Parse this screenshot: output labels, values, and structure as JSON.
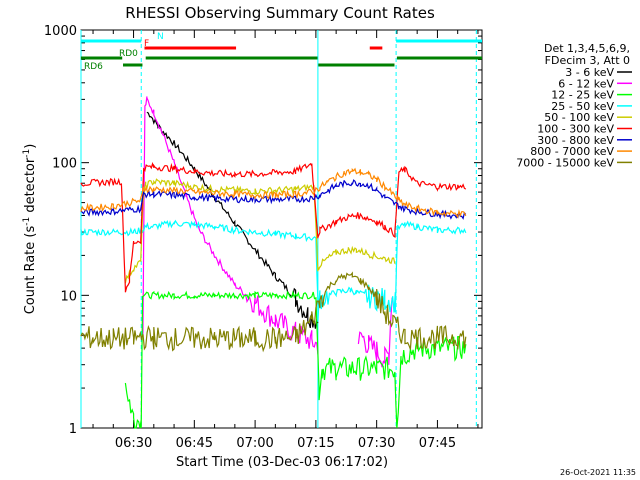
{
  "chart_data": {
    "type": "line",
    "title": "RHESSI Observing Summary Count Rates",
    "xlabel": "Start Time (03-Dec-03 06:17:02)",
    "ylabel_prefix": "Count Rate (s",
    "ylabel_sup": "-1",
    "ylabel_suffix": " detector",
    "ylabel_sup2": "-1",
    "ylabel_close": ")",
    "x_start_minutes": 17.03,
    "xlim_minutes": [
      17.03,
      116.0
    ],
    "ylim": [
      1,
      1000
    ],
    "y_scale": "log",
    "x_ticks": [
      {
        "label": "06:30",
        "minutes": 30
      },
      {
        "label": "06:45",
        "minutes": 45
      },
      {
        "label": "07:00",
        "minutes": 60
      },
      {
        "label": "07:15",
        "minutes": 75
      },
      {
        "label": "07:30",
        "minutes": 90
      },
      {
        "label": "07:45",
        "minutes": 105
      }
    ],
    "y_ticks": [
      {
        "label": "1",
        "value": 1
      },
      {
        "label": "10",
        "value": 10
      },
      {
        "label": "100",
        "value": 100
      },
      {
        "label": "1000",
        "value": 1000
      }
    ],
    "legend": {
      "position": "right",
      "header": [
        "Det 1,3,4,5,6,9,",
        "FDecim 3, Att 0"
      ]
    },
    "series": [
      {
        "name": "3 - 6 keV",
        "color": "#000000",
        "x": [
          17,
          32.5,
          33.3,
          34,
          36,
          40,
          45,
          50,
          55,
          60,
          65,
          70,
          73,
          75.5,
          76.5,
          80,
          85,
          87
        ],
        "y": [
          null,
          null,
          240,
          230,
          190,
          140,
          90,
          55,
          35,
          22,
          14,
          9.5,
          7.2,
          6.4,
          null,
          null,
          null,
          null
        ]
      },
      {
        "name": "6 - 12 keV",
        "color": "#ff00ff",
        "x": [
          32.3,
          32.8,
          33.3,
          35,
          37,
          40,
          43,
          46,
          50,
          55,
          60,
          65,
          70,
          74,
          75.5,
          76.5,
          84,
          85.5,
          86.5,
          88,
          90,
          92,
          93,
          93.8
        ],
        "y": [
          6,
          260,
          300,
          240,
          170,
          100,
          55,
          32,
          20,
          12,
          8.8,
          6.5,
          5.2,
          4.5,
          4.2,
          null,
          null,
          4.5,
          4.8,
          4.2,
          3.8,
          3.3,
          3.6,
          10
        ]
      },
      {
        "name": "12 - 25 keV",
        "color": "#00ff00",
        "x": [
          17,
          27.5,
          28,
          29,
          30,
          31.9,
          32.2,
          35,
          40,
          45,
          50,
          55,
          60,
          65,
          70,
          75,
          75.8,
          76.5,
          80,
          85,
          90,
          94.5,
          95,
          96,
          100,
          110,
          112
        ],
        "y": [
          null,
          null,
          2.2,
          1.6,
          1.2,
          1.1,
          10,
          10,
          10,
          10,
          10,
          10,
          10,
          10,
          10,
          10,
          1.9,
          2.8,
          2.8,
          2.8,
          2.8,
          2.8,
          1.0,
          3.5,
          4.0,
          4.0,
          4.0
        ]
      },
      {
        "name": "25 - 50 keV",
        "color": "#00ffff",
        "x": [
          17,
          27,
          30,
          32.2,
          32.8,
          35,
          40,
          45,
          50,
          55,
          60,
          65,
          70,
          75,
          75.5,
          76,
          80,
          83.5,
          85,
          88,
          90,
          92,
          94.6,
          95.2,
          97,
          100,
          105,
          110,
          112
        ],
        "y": [
          30,
          30,
          30,
          31,
          33,
          33,
          35,
          34,
          33,
          31,
          30,
          29,
          28,
          27,
          7.5,
          9.5,
          10.5,
          11,
          10.5,
          9.8,
          9.5,
          9.3,
          9.0,
          32,
          34,
          33,
          31,
          31,
          31
        ]
      },
      {
        "name": "50 - 100 keV",
        "color": "#cccc00",
        "x": [
          17,
          27.3,
          28,
          30,
          31.8,
          32.3,
          33,
          35,
          40,
          45,
          50,
          55,
          60,
          65,
          70,
          74.5,
          75.5,
          76,
          78,
          80,
          83,
          85,
          87,
          89,
          92,
          94.5,
          95.5,
          97,
          100,
          105,
          110,
          112
        ],
        "y": [
          null,
          null,
          13,
          16,
          18,
          50,
          68,
          72,
          70,
          66,
          63,
          62,
          61,
          62,
          63,
          66,
          16,
          17,
          19,
          21,
          22,
          22,
          21,
          20,
          19,
          18,
          null,
          null,
          null,
          null,
          null,
          null
        ]
      },
      {
        "name": "100 - 300 keV",
        "color": "#ff0000",
        "x": [
          17,
          27,
          28,
          29,
          30,
          31.8,
          32.5,
          35,
          40,
          45,
          50,
          55,
          60,
          65,
          70,
          74,
          75.5,
          76,
          80,
          83,
          85,
          87,
          90,
          92,
          94.5,
          95.5,
          97,
          100,
          105,
          110,
          112
        ],
        "y": [
          70,
          72,
          11,
          13,
          25,
          26,
          92,
          93,
          90,
          86,
          83,
          82,
          82,
          84,
          86,
          98,
          28,
          31,
          36,
          39,
          40,
          39,
          36,
          33,
          29,
          85,
          88,
          70,
          66,
          66,
          66
        ]
      },
      {
        "name": "300 - 800 keV",
        "color": "#0000cc",
        "x": [
          17,
          25,
          31.8,
          32.5,
          35,
          40,
          45,
          50,
          55,
          60,
          65,
          70,
          74,
          76,
          78,
          80,
          82,
          84,
          86,
          88,
          90,
          92,
          94,
          95.5,
          97,
          100,
          105,
          110,
          112
        ],
        "y": [
          42,
          43,
          45,
          58,
          58,
          57,
          55,
          54,
          53,
          53,
          53,
          53,
          54,
          57,
          62,
          67,
          70,
          71,
          70,
          67,
          62,
          55,
          50,
          47,
          45,
          43,
          41,
          40,
          40
        ]
      },
      {
        "name": "800 - 7000 keV",
        "color": "#ff8800",
        "x": [
          17,
          25,
          31.8,
          32.5,
          35,
          40,
          45,
          50,
          55,
          60,
          65,
          70,
          74,
          76,
          78,
          80,
          82,
          84,
          86,
          88,
          90,
          92,
          94,
          95.5,
          97,
          100,
          105,
          110,
          112
        ],
        "y": [
          45,
          47,
          52,
          64,
          63,
          62,
          60,
          59,
          58,
          57,
          57,
          58,
          60,
          65,
          72,
          78,
          84,
          86,
          85,
          81,
          75,
          66,
          58,
          52,
          48,
          45,
          42,
          41,
          41
        ]
      },
      {
        "name": "7000 - 15000 keV",
        "color": "#808000",
        "x": [
          17,
          20,
          25,
          30,
          32,
          35,
          40,
          45,
          50,
          55,
          60,
          65,
          70,
          74,
          76,
          78,
          80,
          82,
          84,
          86,
          88,
          90,
          92,
          94,
          95.5,
          97,
          100,
          105,
          110,
          112
        ],
        "y": [
          4.8,
          4.8,
          4.7,
          4.7,
          4.8,
          4.8,
          4.7,
          4.7,
          4.7,
          4.7,
          4.7,
          4.7,
          4.8,
          6.5,
          9.0,
          11.5,
          13,
          14,
          14,
          13,
          11.5,
          9.5,
          7.5,
          6.2,
          5.5,
          4.8,
          4.8,
          4.8,
          4.8,
          4.8
        ]
      }
    ],
    "flag_bars": [
      {
        "name": "N",
        "color": "#00ffff",
        "label": "N",
        "segments": [
          [
            17,
            31.9
          ],
          [
            94.8,
            116
          ]
        ]
      },
      {
        "name": "F",
        "color": "#ff0000",
        "label": "F",
        "segments": [
          [
            32.7,
            55.3
          ],
          [
            88.3,
            91.4
          ]
        ]
      },
      {
        "name": "RD0",
        "color": "#008000",
        "label": "RD0",
        "segments": [
          [
            17,
            27.2
          ],
          [
            33.0,
            75.4
          ],
          [
            95.0,
            116
          ]
        ]
      },
      {
        "name": "RD6",
        "color": "#008000",
        "label": "RD6",
        "segments": [
          [
            27.4,
            32.2
          ],
          [
            75.6,
            94.4
          ]
        ]
      }
    ],
    "vertical_markers": [
      {
        "minutes": 17.03,
        "color": "#00ffff",
        "style": "solid"
      },
      {
        "minutes": 31.9,
        "color": "#00ffff",
        "style": "dashed"
      },
      {
        "minutes": 75.5,
        "color": "#00ffff",
        "style": "solid"
      },
      {
        "minutes": 94.8,
        "color": "#00ffff",
        "style": "dashed"
      },
      {
        "minutes": 114.6,
        "color": "#00ffff",
        "style": "dashed"
      }
    ],
    "footer_date": "26-Oct-2021 11:35"
  }
}
